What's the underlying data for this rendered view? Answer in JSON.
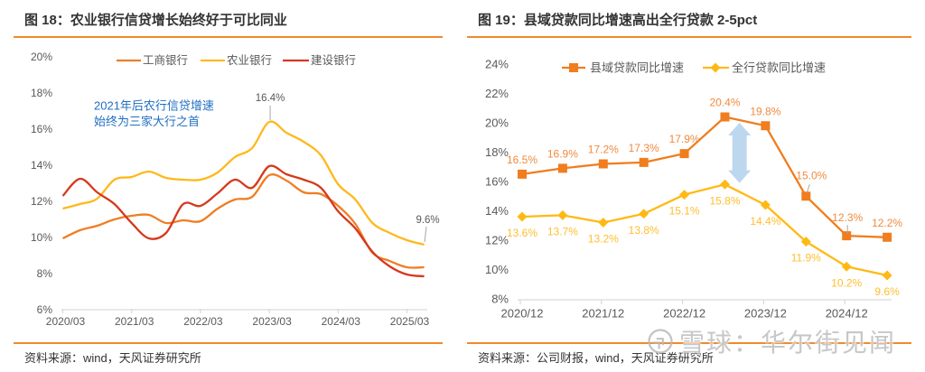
{
  "left_panel": {
    "title": "图 18：农业银行信贷增长始终好于可比同业",
    "source": "资料来源：wind，天风证券研究所"
  },
  "right_panel": {
    "title": "图 19：县域贷款同比增速高出全行贷款 2-5pct",
    "source": "资料来源：公司财报，wind，天风证券研究所"
  },
  "watermark": {
    "icon": "xueqiu-logo-icon",
    "text": "雪球：华尔街见闻"
  },
  "colors": {
    "title_rule": "#F08A2C",
    "annotation_blue": "#1F6FC0",
    "arrow_fill": "#BDD7EE",
    "axis": "#D9D9D9"
  },
  "chart_data": [
    {
      "type": "line",
      "title": "农业银行信贷增长始终好于可比同业",
      "xlabel": "",
      "ylabel": "",
      "x": [
        "2020/03",
        "2020/06",
        "2020/09",
        "2020/12",
        "2021/03",
        "2021/06",
        "2021/09",
        "2021/12",
        "2022/03",
        "2022/06",
        "2022/09",
        "2022/12",
        "2023/03",
        "2023/06",
        "2023/09",
        "2023/12",
        "2024/03",
        "2024/06",
        "2024/09",
        "2024/12",
        "2025/03",
        "2025/06"
      ],
      "xticks": [
        "2020/03",
        "2021/03",
        "2022/03",
        "2023/03",
        "2024/03",
        "2025/03"
      ],
      "yticks": [
        6,
        8,
        10,
        12,
        14,
        16,
        18,
        20
      ],
      "ytick_labels": [
        "6%",
        "8%",
        "10%",
        "12%",
        "14%",
        "16%",
        "18%",
        "20%"
      ],
      "ylim": [
        6,
        20
      ],
      "unit": "%",
      "grid": false,
      "legend": "top",
      "smooth": true,
      "series": [
        {
          "name": "工商银行",
          "color": "#F07D24",
          "values": [
            9.95,
            10.4,
            10.65,
            11.0,
            11.2,
            11.25,
            10.8,
            10.95,
            10.9,
            11.6,
            12.1,
            12.25,
            13.45,
            13.15,
            12.5,
            12.4,
            11.75,
            10.75,
            9.15,
            8.7,
            8.35,
            8.35
          ]
        },
        {
          "name": "农业银行",
          "color": "#FFB81C",
          "values": [
            11.6,
            11.85,
            12.15,
            13.2,
            13.35,
            13.65,
            13.3,
            13.2,
            13.2,
            13.6,
            14.45,
            14.95,
            16.4,
            15.8,
            15.3,
            14.55,
            12.95,
            12.1,
            10.8,
            10.25,
            9.85,
            9.6
          ]
        },
        {
          "name": "建设银行",
          "color": "#D5391C",
          "values": [
            12.3,
            13.25,
            12.5,
            11.85,
            10.8,
            9.95,
            10.25,
            11.85,
            11.75,
            12.45,
            13.2,
            12.75,
            13.95,
            13.5,
            13.2,
            12.75,
            11.45,
            10.5,
            9.2,
            8.4,
            7.95,
            7.85
          ]
        }
      ],
      "annotations": [
        {
          "type": "note",
          "lines": [
            "2021年后农行信贷增速",
            "始终为三家大行之首"
          ]
        },
        {
          "type": "value-callout",
          "series": "农业银行",
          "x": "2023/03",
          "text": "16.4%"
        },
        {
          "type": "value-callout",
          "series": "农业银行",
          "x": "2025/06",
          "text": "9.6%"
        }
      ]
    },
    {
      "type": "line",
      "title": "县域贷款同比增速高出全行贷款 2-5pct",
      "xlabel": "",
      "ylabel": "",
      "x": [
        "2020/12",
        "2021/06",
        "2021/12",
        "2022/06",
        "2022/12",
        "2023/06",
        "2023/12",
        "2024/06",
        "2024/12",
        "2025/06"
      ],
      "xticks": [
        "2020/12",
        "2021/12",
        "2022/12",
        "2023/12",
        "2024/12"
      ],
      "yticks": [
        8,
        10,
        12,
        14,
        16,
        18,
        20,
        22,
        24
      ],
      "ytick_labels": [
        "8%",
        "10%",
        "12%",
        "14%",
        "16%",
        "18%",
        "20%",
        "22%",
        "24%"
      ],
      "ylim": [
        8,
        24
      ],
      "unit": "%",
      "grid": false,
      "legend": "top",
      "series": [
        {
          "name": "县域贷款同比增速",
          "color": "#F07D1E",
          "label_color": "#F08A3E",
          "marker": "square",
          "values": [
            16.5,
            16.9,
            17.2,
            17.3,
            17.9,
            20.4,
            19.8,
            15.0,
            12.3,
            12.2
          ],
          "labels": [
            "16.5%",
            "16.9%",
            "17.2%",
            "17.3%",
            "17.9%",
            "20.4%",
            "19.8%",
            "15.0%",
            "12.3%",
            "12.2%"
          ]
        },
        {
          "name": "全行贷款同比增速",
          "color": "#FFB915",
          "label_color": "#FFBE2E",
          "marker": "diamond",
          "values": [
            13.6,
            13.7,
            13.2,
            13.8,
            15.1,
            15.8,
            14.4,
            11.9,
            10.2,
            9.6
          ],
          "labels": [
            "13.6%",
            "13.7%",
            "13.2%",
            "13.8%",
            "15.1%",
            "15.8%",
            "14.4%",
            "11.9%",
            "10.2%",
            "9.6%"
          ]
        }
      ],
      "annotations": [
        {
          "type": "double-arrow",
          "x_between": [
            "2023/06",
            "2023/12"
          ],
          "from": 15.9,
          "to": 20.0
        }
      ]
    }
  ]
}
